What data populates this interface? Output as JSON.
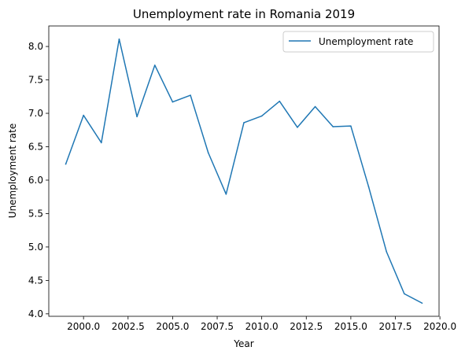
{
  "chart_data": {
    "type": "line",
    "title": "Unemployment rate in Romania 2019",
    "xlabel": "Year",
    "ylabel": "Unemployment rate",
    "xlim": [
      1998.05,
      2019.95
    ],
    "ylim": [
      3.963,
      8.307
    ],
    "x_ticks": [
      2000.0,
      2002.5,
      2005.0,
      2007.5,
      2010.0,
      2012.5,
      2015.0,
      2017.5,
      2020.0
    ],
    "x_tick_labels": [
      "2000.0",
      "2002.5",
      "2005.0",
      "2007.5",
      "2010.0",
      "2012.5",
      "2015.0",
      "2017.5",
      "2020.0"
    ],
    "y_ticks": [
      4.0,
      4.5,
      5.0,
      5.5,
      6.0,
      6.5,
      7.0,
      7.5,
      8.0
    ],
    "y_tick_labels": [
      "4.0",
      "4.5",
      "5.0",
      "5.5",
      "6.0",
      "6.5",
      "7.0",
      "7.5",
      "8.0"
    ],
    "grid": false,
    "legend": {
      "position": "top-right",
      "entries": [
        "Unemployment rate"
      ]
    },
    "series": [
      {
        "name": "Unemployment rate",
        "color": "#1f77b4",
        "x": [
          1999,
          2000,
          2001,
          2002,
          2003,
          2004,
          2005,
          2006,
          2007,
          2008,
          2009,
          2010,
          2011,
          2012,
          2013,
          2014,
          2015,
          2016,
          2017,
          2018,
          2019
        ],
        "y": [
          6.24,
          6.97,
          6.56,
          8.11,
          6.95,
          7.72,
          7.17,
          7.27,
          6.41,
          5.79,
          6.86,
          6.96,
          7.18,
          6.79,
          7.1,
          6.8,
          6.81,
          5.9,
          4.93,
          4.3,
          4.16
        ]
      }
    ]
  }
}
